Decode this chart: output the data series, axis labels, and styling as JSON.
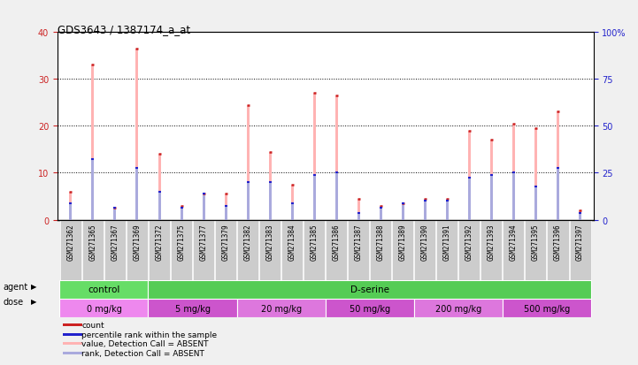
{
  "title": "GDS3643 / 1387174_a_at",
  "samples": [
    "GSM271362",
    "GSM271365",
    "GSM271367",
    "GSM271369",
    "GSM271372",
    "GSM271375",
    "GSM271377",
    "GSM271379",
    "GSM271382",
    "GSM271383",
    "GSM271384",
    "GSM271385",
    "GSM271386",
    "GSM271387",
    "GSM271388",
    "GSM271389",
    "GSM271390",
    "GSM271391",
    "GSM271392",
    "GSM271393",
    "GSM271394",
    "GSM271395",
    "GSM271396",
    "GSM271397"
  ],
  "pink_bars": [
    6.0,
    33.0,
    2.5,
    36.5,
    14.0,
    3.0,
    5.5,
    5.5,
    24.5,
    14.5,
    7.5,
    27.0,
    26.5,
    4.5,
    3.0,
    3.5,
    4.5,
    4.5,
    19.0,
    17.0,
    20.5,
    19.5,
    23.0,
    2.0
  ],
  "blue_bars": [
    3.5,
    13.0,
    2.5,
    11.0,
    6.0,
    2.5,
    5.5,
    3.0,
    8.0,
    8.0,
    3.5,
    9.5,
    10.0,
    1.5,
    2.5,
    3.5,
    4.0,
    4.0,
    9.0,
    9.5,
    10.0,
    7.0,
    11.0,
    1.5
  ],
  "agent_groups": [
    {
      "label": "control",
      "start": 0,
      "end": 4
    },
    {
      "label": "D-serine",
      "start": 4,
      "end": 24
    }
  ],
  "dose_groups": [
    {
      "label": "0 mg/kg",
      "start": 0,
      "end": 4
    },
    {
      "label": "5 mg/kg",
      "start": 4,
      "end": 8
    },
    {
      "label": "20 mg/kg",
      "start": 8,
      "end": 12
    },
    {
      "label": "50 mg/kg",
      "start": 12,
      "end": 16
    },
    {
      "label": "200 mg/kg",
      "start": 16,
      "end": 20
    },
    {
      "label": "500 mg/kg",
      "start": 20,
      "end": 24
    }
  ],
  "ylim_left": [
    0,
    40
  ],
  "ylim_right": [
    0,
    100
  ],
  "yticks_left": [
    0,
    10,
    20,
    30,
    40
  ],
  "yticks_right": [
    0,
    25,
    50,
    75,
    100
  ],
  "bar_width": 0.12,
  "pink_color": "#ffb3b3",
  "blue_color": "#aaaadd",
  "red_color": "#cc2222",
  "dark_blue_color": "#2222cc",
  "agent_control_color": "#66dd66",
  "agent_dserine_color": "#55cc55",
  "dose_colors": [
    "#ee88ee",
    "#cc55cc",
    "#dd77dd",
    "#cc55cc",
    "#dd77dd",
    "#cc55cc"
  ],
  "gray_cell_color": "#cccccc",
  "fig_bg": "#f0f0f0",
  "legend_labels": [
    "count",
    "percentile rank within the sample",
    "value, Detection Call = ABSENT",
    "rank, Detection Call = ABSENT"
  ],
  "legend_colors": [
    "#cc2222",
    "#2222cc",
    "#ffb3b3",
    "#aaaadd"
  ],
  "grid_yticks": [
    10,
    20,
    30
  ]
}
